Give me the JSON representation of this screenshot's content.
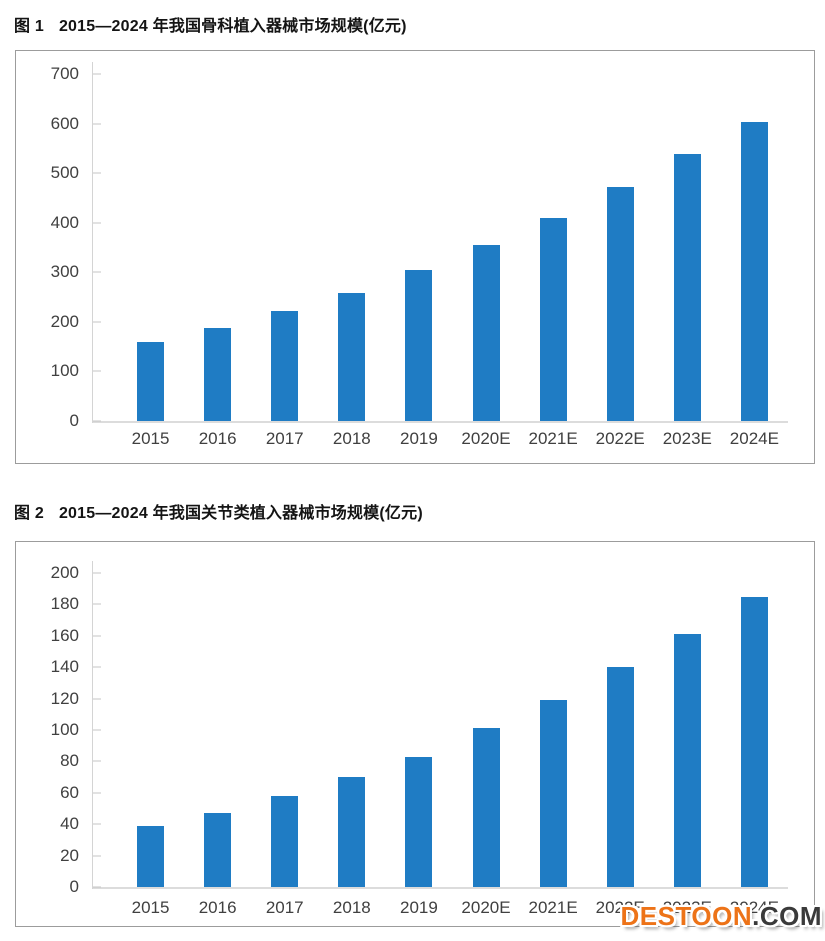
{
  "page": {
    "background": "#ffffff"
  },
  "charts": [
    {
      "title": {
        "label": "图 1",
        "text": "2015—2024 年我国骨科植入器械市场规模(亿元)"
      },
      "chart_data": {
        "type": "bar",
        "title": "图 1  2015—2024 年我国骨科植入器械市场规模(亿元)",
        "categories": [
          "2015",
          "2016",
          "2017",
          "2018",
          "2019",
          "2020E",
          "2021E",
          "2022E",
          "2023E",
          "2024E"
        ],
        "values": [
          160,
          188,
          222,
          258,
          304,
          356,
          410,
          472,
          538,
          603
        ],
        "xlabel": "",
        "ylabel": "",
        "ylim": [
          0,
          700
        ],
        "ystep": 100,
        "bar_color": "#1f7cc4",
        "grid": false,
        "legend": false,
        "unit": "亿元"
      }
    },
    {
      "title": {
        "label": "图 2",
        "text": "2015—2024 年我国关节类植入器械市场规模(亿元)"
      },
      "chart_data": {
        "type": "bar",
        "title": "图 2  2015—2024 年我国关节类植入器械市场规模(亿元)",
        "categories": [
          "2015",
          "2016",
          "2017",
          "2018",
          "2019",
          "2020E",
          "2021E",
          "2022E",
          "2023E",
          "2024E"
        ],
        "values": [
          39,
          47,
          58,
          70,
          83,
          101,
          119,
          140,
          161,
          185
        ],
        "xlabel": "",
        "ylabel": "",
        "ylim": [
          0,
          200
        ],
        "ystep": 20,
        "bar_color": "#1f7cc4",
        "grid": false,
        "legend": false,
        "unit": "亿元"
      }
    }
  ],
  "watermark": {
    "brand": "DESTOON",
    "suffix": ".COM",
    "brand_color": "#ed7318",
    "suffix_color": "#3a3a3a"
  }
}
